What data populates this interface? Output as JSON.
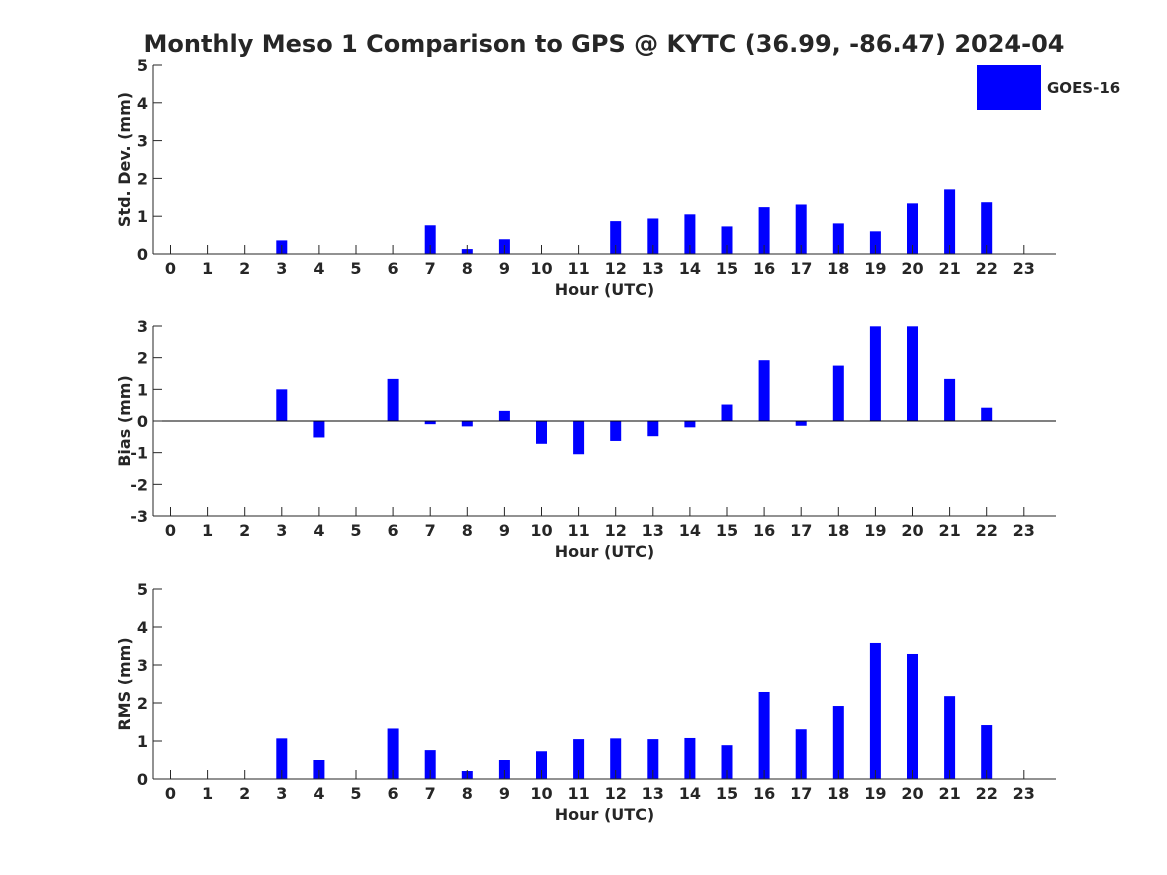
{
  "title": "Monthly Meso 1 Comparison to GPS @ KYTC (36.99, -86.47) 2024-04",
  "legend": {
    "label": "GOES-16",
    "placement": "top-right"
  },
  "colors": {
    "bar": "#0000ff",
    "axis": "#262626",
    "background": "#ffffff"
  },
  "chart_data": [
    {
      "type": "bar",
      "title": "Monthly Meso 1 Comparison to GPS @ KYTC (36.99, -86.47) 2024-04",
      "xlabel": "Hour (UTC)",
      "ylabel": "Std. Dev. (mm)",
      "categories": [
        "0",
        "1",
        "2",
        "3",
        "4",
        "5",
        "6",
        "7",
        "8",
        "9",
        "10",
        "11",
        "12",
        "13",
        "14",
        "15",
        "16",
        "17",
        "18",
        "19",
        "20",
        "21",
        "22",
        "23"
      ],
      "ylim": [
        0,
        5
      ],
      "yticks": [
        "0",
        "1",
        "2",
        "3",
        "4",
        "5"
      ],
      "series": [
        {
          "name": "GOES-16",
          "values": [
            null,
            null,
            null,
            0.36,
            null,
            null,
            null,
            0.76,
            0.13,
            0.39,
            null,
            null,
            0.87,
            0.94,
            1.05,
            0.73,
            1.24,
            1.31,
            0.81,
            0.6,
            1.34,
            1.71,
            1.37,
            null
          ]
        }
      ],
      "zero_line": false,
      "grid": false
    },
    {
      "type": "bar",
      "xlabel": "Hour (UTC)",
      "ylabel": "Bias (mm)",
      "categories": [
        "0",
        "1",
        "2",
        "3",
        "4",
        "5",
        "6",
        "7",
        "8",
        "9",
        "10",
        "11",
        "12",
        "13",
        "14",
        "15",
        "16",
        "17",
        "18",
        "19",
        "20",
        "21",
        "22",
        "23"
      ],
      "ylim": [
        -3,
        3
      ],
      "yticks": [
        "-3",
        "-2",
        "-1",
        "0",
        "1",
        "2",
        "3"
      ],
      "series": [
        {
          "name": "GOES-16",
          "values": [
            null,
            null,
            null,
            1.0,
            -0.52,
            null,
            1.33,
            -0.1,
            -0.17,
            0.32,
            -0.72,
            -1.05,
            -0.63,
            -0.48,
            -0.2,
            0.52,
            1.92,
            -0.15,
            1.75,
            2.99,
            2.99,
            1.33,
            0.42,
            null
          ]
        }
      ],
      "zero_line": true,
      "grid": false
    },
    {
      "type": "bar",
      "xlabel": "Hour (UTC)",
      "ylabel": "RMS (mm)",
      "categories": [
        "0",
        "1",
        "2",
        "3",
        "4",
        "5",
        "6",
        "7",
        "8",
        "9",
        "10",
        "11",
        "12",
        "13",
        "14",
        "15",
        "16",
        "17",
        "18",
        "19",
        "20",
        "21",
        "22",
        "23"
      ],
      "ylim": [
        0,
        5
      ],
      "yticks": [
        "0",
        "1",
        "2",
        "3",
        "4",
        "5"
      ],
      "series": [
        {
          "name": "GOES-16",
          "values": [
            null,
            null,
            null,
            1.07,
            0.5,
            null,
            1.33,
            0.76,
            0.21,
            0.5,
            0.73,
            1.05,
            1.07,
            1.05,
            1.08,
            0.89,
            2.29,
            1.31,
            1.92,
            3.58,
            3.29,
            2.18,
            1.42,
            null
          ]
        }
      ],
      "zero_line": false,
      "grid": false
    }
  ]
}
